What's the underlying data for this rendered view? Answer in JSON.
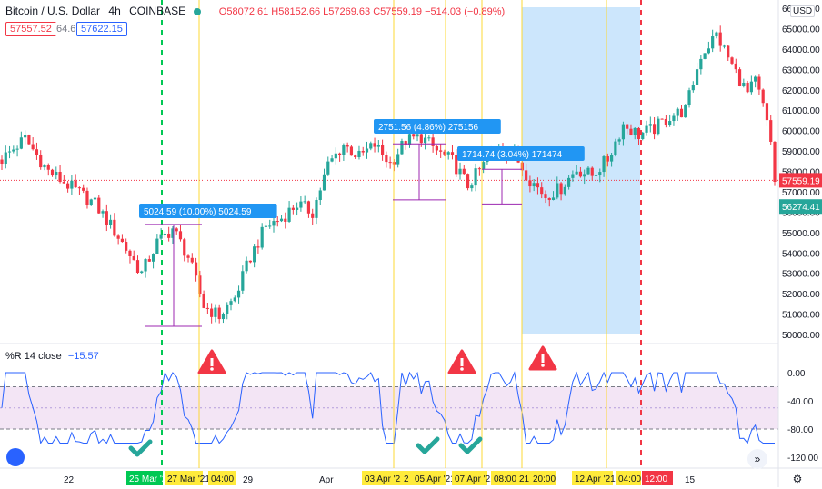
{
  "header": {
    "symbol": "Bitcoin / U.S. Dollar",
    "interval": "4h",
    "exchange": "COINBASE",
    "ohlc": "O58072.61  H58152.66  L57269.63  C57559.19  −514.03 (−0.89%)",
    "bid": "57557.52",
    "spread": "64.63",
    "ask": "57622.15"
  },
  "price_axis": {
    "currency": "USD",
    "ticks": [
      "66000.00",
      "65000.00",
      "64000.00",
      "63000.00",
      "62000.00",
      "61000.00",
      "60000.00",
      "59000.00",
      "58000.00",
      "57000.00",
      "56000.00",
      "55000.00",
      "54000.00",
      "53000.00",
      "52000.00",
      "51000.00",
      "50000.00"
    ],
    "last_price_label": "57559.19",
    "prev_label": "56274.41"
  },
  "indicator": {
    "title": "%R 14 close",
    "value": "−15.57",
    "ticks": [
      "0.00",
      "-40.00",
      "-80.00",
      "-120.00"
    ],
    "band_upper": -20,
    "band_lower": -80,
    "band_mid": -50
  },
  "time_axis": {
    "ticks": [
      "22",
      "29",
      "Apr",
      "5",
      "15"
    ],
    "highlights": [
      {
        "label": "25 Mar '21",
        "bg": "#00c853",
        "fg": "#ffffff"
      },
      {
        "label": "27 Mar '21",
        "bg": "#ffeb3b",
        "fg": "#131722"
      },
      {
        "label": "04:00",
        "bg": "#ffeb3b",
        "fg": "#131722"
      },
      {
        "label": "03 Apr '21",
        "bg": "#ffeb3b",
        "fg": "#131722"
      },
      {
        "label": "2",
        "bg": "#ffeb3b",
        "fg": "#131722"
      },
      {
        "label": "05 Apr '21",
        "bg": "#ffeb3b",
        "fg": "#131722"
      },
      {
        "label": "07 Apr '21",
        "bg": "#ffeb3b",
        "fg": "#131722"
      },
      {
        "label": "08:00",
        "bg": "#ffeb3b",
        "fg": "#131722"
      },
      {
        "label": "21",
        "bg": "#ffeb3b",
        "fg": "#131722"
      },
      {
        "label": "20:00",
        "bg": "#ffeb3b",
        "fg": "#131722"
      },
      {
        "label": "12 Apr '21",
        "bg": "#ffeb3b",
        "fg": "#131722"
      },
      {
        "label": "04:00",
        "bg": "#ffeb3b",
        "fg": "#131722"
      },
      {
        "label": "12:00",
        "bg": "#f23645",
        "fg": "#ffffff"
      }
    ]
  },
  "measurements": [
    {
      "label": "5024.59 (10.00%) 5024.59",
      "low": 50400,
      "high": 55400
    },
    {
      "label": "2751.56 (4.86%) 275156",
      "low": 56600,
      "high": 59350
    },
    {
      "label": "1714.74 (3.04%) 171474",
      "low": 56400,
      "high": 58100
    }
  ],
  "colors": {
    "up": "#26a69a",
    "down": "#f23645",
    "wr_line": "#2962ff",
    "band_fill": "#f3e5f5",
    "vline_yellow": "#fdd835",
    "vline_green": "#00c853",
    "vline_red": "#f23645",
    "range_fill": "#bbdefb",
    "measure_label": "#2196f3"
  },
  "chart_data": [
    {
      "type": "candlestick",
      "title": "Bitcoin / U.S. Dollar 4h COINBASE",
      "xlabel": "",
      "ylabel": "",
      "ylim": [
        50000,
        66000
      ],
      "grid": false,
      "key_levels": {
        "start": 58600,
        "low_25_mar": 50400,
        "peak_03_apr": 59800,
        "low_07_apr": 55500,
        "high_13_apr": 64900,
        "last": 57559.19
      }
    },
    {
      "type": "line",
      "title": "%R 14 close",
      "ylim": [
        -120,
        0
      ],
      "series": []
    }
  ]
}
